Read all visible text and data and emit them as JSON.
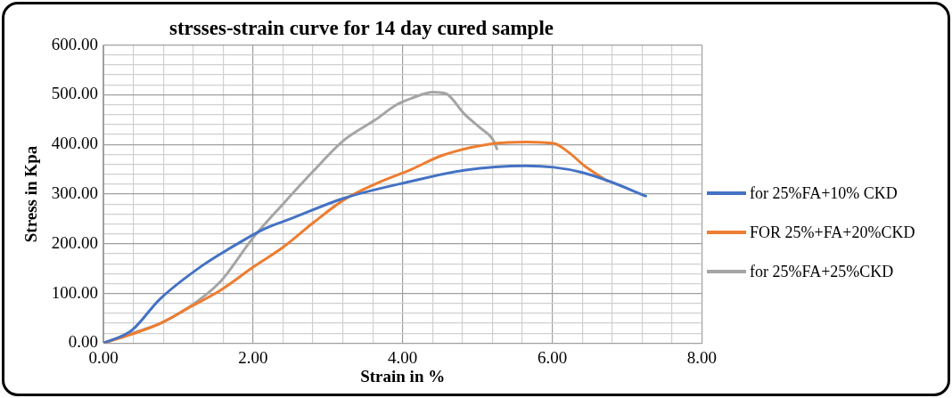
{
  "chart_data": {
    "type": "line",
    "title": "strsses-strain curve for 14 day cured sample",
    "xlabel": "Strain in %",
    "ylabel": "Stress in Kpa",
    "xlim": [
      0,
      8
    ],
    "xticks": [
      {
        "value": 0,
        "label": "0.00"
      },
      {
        "value": 0.4,
        "label": null
      },
      {
        "value": 0.8,
        "label": null
      },
      {
        "value": 1.2,
        "label": null
      },
      {
        "value": 1.6,
        "label": null
      },
      {
        "value": 2,
        "label": "2.00"
      },
      {
        "value": 2.4,
        "label": null
      },
      {
        "value": 2.8,
        "label": null
      },
      {
        "value": 3.2,
        "label": null
      },
      {
        "value": 3.6,
        "label": null
      },
      {
        "value": 4,
        "label": "4.00"
      },
      {
        "value": 4.4,
        "label": null
      },
      {
        "value": 4.8,
        "label": null
      },
      {
        "value": 5.2,
        "label": null
      },
      {
        "value": 5.6,
        "label": null
      },
      {
        "value": 6,
        "label": "6.00"
      },
      {
        "value": 6.4,
        "label": null
      },
      {
        "value": 6.8,
        "label": null
      },
      {
        "value": 7.2,
        "label": null
      },
      {
        "value": 7.6,
        "label": null
      },
      {
        "value": 8,
        "label": "8.00"
      }
    ],
    "ylim": [
      0,
      600
    ],
    "yticks": [
      {
        "value": 0,
        "label": "0.00"
      },
      {
        "value": 20,
        "label": null
      },
      {
        "value": 40,
        "label": null
      },
      {
        "value": 60,
        "label": null
      },
      {
        "value": 80,
        "label": null
      },
      {
        "value": 100,
        "label": "100.00"
      },
      {
        "value": 120,
        "label": null
      },
      {
        "value": 140,
        "label": null
      },
      {
        "value": 160,
        "label": null
      },
      {
        "value": 180,
        "label": null
      },
      {
        "value": 200,
        "label": "200.00"
      },
      {
        "value": 220,
        "label": null
      },
      {
        "value": 240,
        "label": null
      },
      {
        "value": 260,
        "label": null
      },
      {
        "value": 280,
        "label": null
      },
      {
        "value": 300,
        "label": "300.00"
      },
      {
        "value": 320,
        "label": null
      },
      {
        "value": 340,
        "label": null
      },
      {
        "value": 360,
        "label": null
      },
      {
        "value": 380,
        "label": null
      },
      {
        "value": 400,
        "label": "400.00"
      },
      {
        "value": 420,
        "label": null
      },
      {
        "value": 440,
        "label": null
      },
      {
        "value": 460,
        "label": null
      },
      {
        "value": 480,
        "label": null
      },
      {
        "value": 500,
        "label": "500.00"
      },
      {
        "value": 520,
        "label": null
      },
      {
        "value": 540,
        "label": null
      },
      {
        "value": 560,
        "label": null
      },
      {
        "value": 580,
        "label": null
      },
      {
        "value": 600,
        "label": "600.00"
      }
    ],
    "grid": true,
    "legend": "right",
    "marker": "none",
    "line_style": "solid",
    "series": [
      {
        "name": "for 25%FA+10% CKD",
        "color": "#4472c4",
        "x": [
          0,
          0.38,
          0.75,
          1.32,
          1.78,
          2.15,
          2.48,
          3.22,
          4.12,
          4.82,
          5.65,
          6.02,
          6.39,
          6.76,
          7.25
        ],
        "values": [
          0,
          26,
          88,
          156,
          199,
          230,
          249,
          292,
          326,
          348,
          357,
          354,
          344,
          326,
          296
        ]
      },
      {
        "name": "FOR 25%+FA+20%CKD",
        "color": "#ed7d31",
        "x": [
          0,
          0.38,
          0.75,
          1.16,
          1.57,
          2.0,
          2.4,
          2.81,
          3.22,
          3.63,
          4.12,
          4.53,
          5.23,
          5.65,
          6.02,
          6.22,
          6.43,
          6.74
        ],
        "values": [
          0,
          18,
          39,
          73,
          107,
          153,
          193,
          243,
          289,
          320,
          350,
          378,
          402,
          405,
          402,
          384,
          357,
          326
        ]
      },
      {
        "name": "for 25%FA+25%CKD",
        "color": "#a5a5a5",
        "x": [
          0,
          0.38,
          0.75,
          1.12,
          1.57,
          2.0,
          2.4,
          2.81,
          3.22,
          3.63,
          3.92,
          4.12,
          4.41,
          4.58,
          4.82,
          5.03,
          5.21,
          5.26
        ],
        "values": [
          0,
          20,
          39,
          70,
          125,
          212,
          280,
          347,
          409,
          449,
          480,
          493,
          505,
          502,
          462,
          434,
          409,
          391
        ]
      }
    ]
  }
}
